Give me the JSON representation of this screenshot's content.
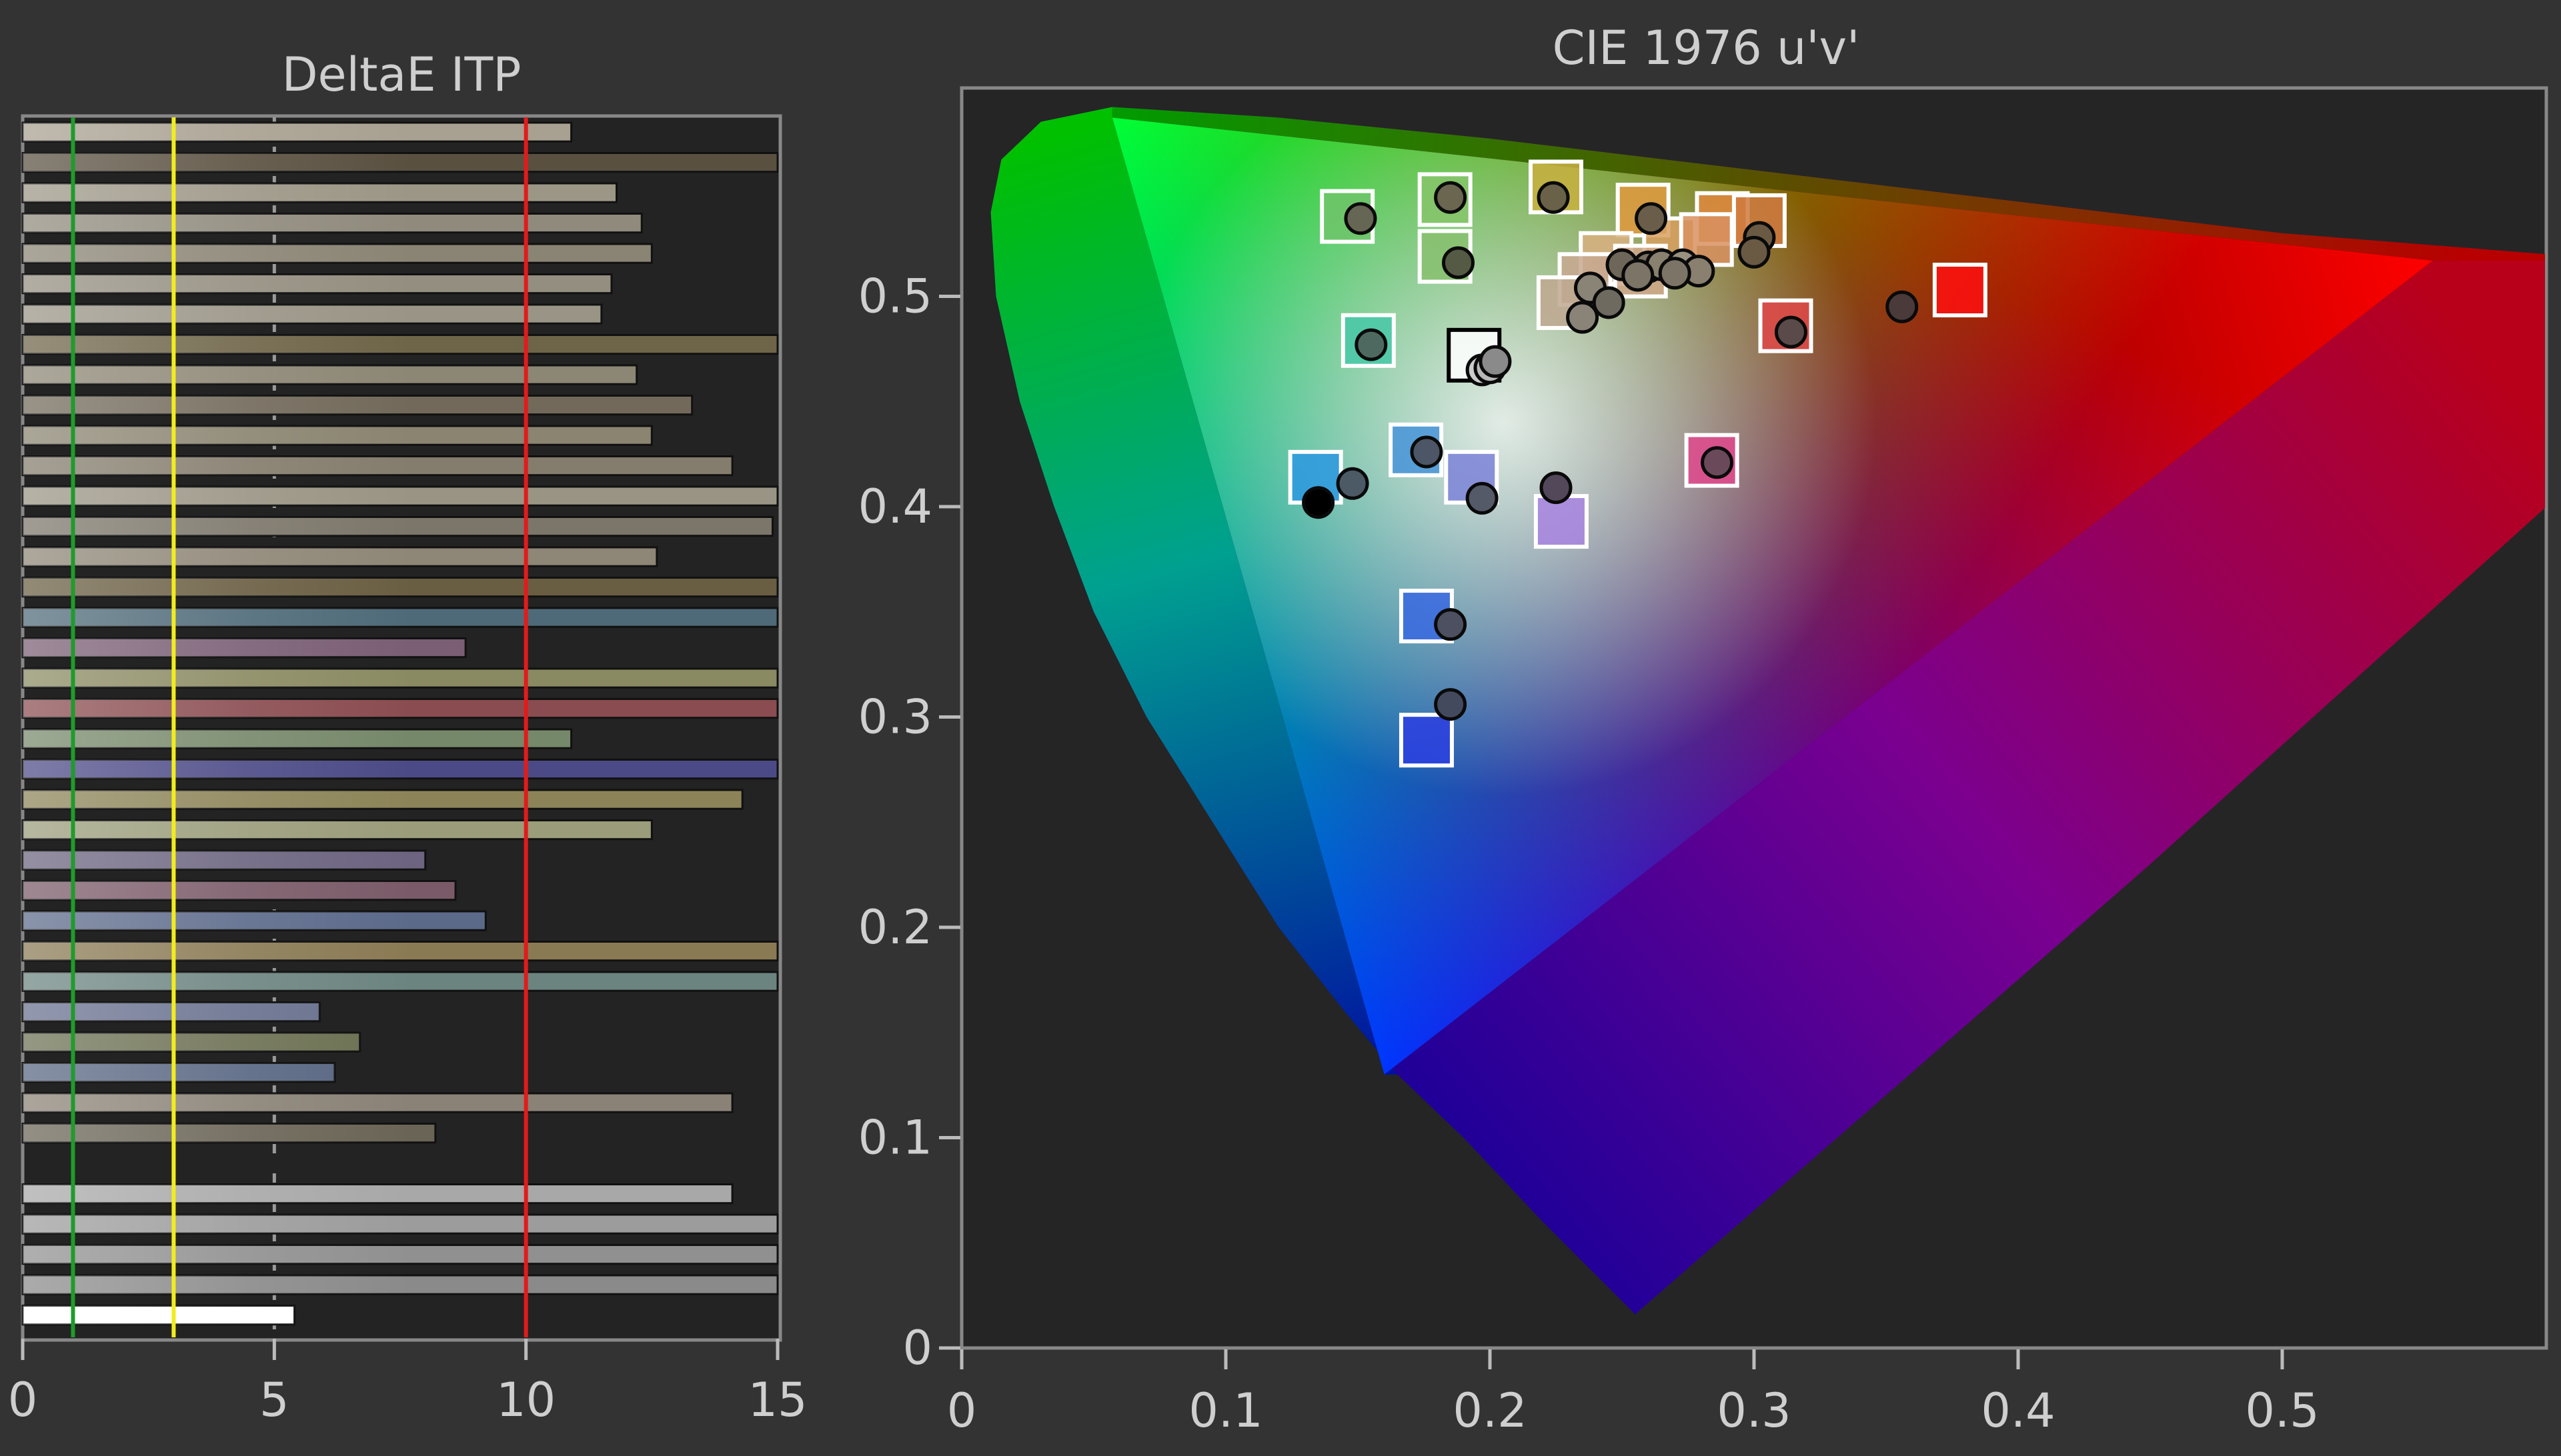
{
  "chart_data": [
    {
      "type": "bar",
      "orientation": "horizontal",
      "title": "DeltaE ITP",
      "xlim": [
        0,
        15
      ],
      "xticks": [
        0,
        5,
        10,
        15
      ],
      "grid": true,
      "reference_lines": [
        {
          "value": 1,
          "color": "#1e9c2a"
        },
        {
          "value": 3,
          "color": "#f2ec1e"
        },
        {
          "value": 10,
          "color": "#e21b1b"
        }
      ],
      "rows": [
        {
          "value": 10.9,
          "color": "#a8a090"
        },
        {
          "value": 15,
          "color": "#5a5040"
        },
        {
          "value": 11.8,
          "color": "#9c9686"
        },
        {
          "value": 12.3,
          "color": "#8f8a7c"
        },
        {
          "value": 12.5,
          "color": "#8a8474"
        },
        {
          "value": 11.7,
          "color": "#948e80"
        },
        {
          "value": 11.5,
          "color": "#9a9486"
        },
        {
          "value": 15,
          "color": "#6e6448"
        },
        {
          "value": 12.2,
          "color": "#8c8674"
        },
        {
          "value": 13.3,
          "color": "#72695a"
        },
        {
          "value": 12.5,
          "color": "#8a8470"
        },
        {
          "value": 14.1,
          "color": "#847c6c"
        },
        {
          "value": 15,
          "color": "#9a9484"
        },
        {
          "value": 14.9,
          "color": "#7c766a"
        },
        {
          "value": 12.6,
          "color": "#8e8676"
        },
        {
          "value": 15,
          "color": "#6a5e42"
        },
        {
          "value": 15,
          "color": "#4e6a78"
        },
        {
          "value": 8.8,
          "color": "#7a5e74"
        },
        {
          "value": 15,
          "color": "#8a8a62"
        },
        {
          "value": 15,
          "color": "#8a4c50"
        },
        {
          "value": 10.9,
          "color": "#76886a"
        },
        {
          "value": 15,
          "color": "#4c4a86"
        },
        {
          "value": 14.3,
          "color": "#8c8458"
        },
        {
          "value": 12.5,
          "color": "#9a9c7a"
        },
        {
          "value": 8,
          "color": "#6c6480"
        },
        {
          "value": 8.6,
          "color": "#7a5a68"
        },
        {
          "value": 9.2,
          "color": "#5c6a8a"
        },
        {
          "value": 15,
          "color": "#8a7a54"
        },
        {
          "value": 15,
          "color": "#6c8480"
        },
        {
          "value": 5.9,
          "color": "#68708e"
        },
        {
          "value": 6.7,
          "color": "#6c7052"
        },
        {
          "value": 6.2,
          "color": "#586682"
        },
        {
          "value": 14.1,
          "color": "#8a8276"
        },
        {
          "value": 8.2,
          "color": "#6a6456"
        },
        {
          "value": 0,
          "color": "#444444"
        },
        {
          "value": 14.1,
          "color": "#a8a8a8"
        },
        {
          "value": 15,
          "color": "#9c9c9c"
        },
        {
          "value": 15,
          "color": "#909090"
        },
        {
          "value": 15,
          "color": "#8a8a8a"
        },
        {
          "value": 5.4,
          "color": "#ffffff"
        }
      ]
    },
    {
      "type": "scatter",
      "title": "CIE 1976 u'v'",
      "xlim": [
        0,
        0.6
      ],
      "ylim": [
        0,
        0.6
      ],
      "xticks": [
        "0",
        "0.1",
        "0.2",
        "0.3",
        "0.4",
        "0.5"
      ],
      "yticks": [
        "0",
        "0.1",
        "0.2",
        "0.3",
        "0.4",
        "0.5"
      ],
      "gamut": {
        "red": [
          0.557,
          0.517
        ],
        "green": [
          0.057,
          0.585
        ],
        "blue": [
          0.16,
          0.13
        ]
      },
      "target_squares": [
        {
          "u": 0.146,
          "v": 0.538,
          "color": "#6fc46a"
        },
        {
          "u": 0.183,
          "v": 0.546,
          "color": "#86c46a"
        },
        {
          "u": 0.225,
          "v": 0.552,
          "color": "#c9b040"
        },
        {
          "u": 0.258,
          "v": 0.541,
          "color": "#e09a40"
        },
        {
          "u": 0.288,
          "v": 0.537,
          "color": "#e08a40"
        },
        {
          "u": 0.302,
          "v": 0.536,
          "color": "#d07a40"
        },
        {
          "u": 0.268,
          "v": 0.525,
          "color": "#d8a060"
        },
        {
          "u": 0.282,
          "v": 0.527,
          "color": "#d89060"
        },
        {
          "u": 0.244,
          "v": 0.518,
          "color": "#d8b080"
        },
        {
          "u": 0.257,
          "v": 0.512,
          "color": "#d0a888"
        },
        {
          "u": 0.236,
          "v": 0.508,
          "color": "#c8a890"
        },
        {
          "u": 0.228,
          "v": 0.497,
          "color": "#c0a890"
        },
        {
          "u": 0.183,
          "v": 0.519,
          "color": "#88c070"
        },
        {
          "u": 0.154,
          "v": 0.479,
          "color": "#48c8a8"
        },
        {
          "u": 0.194,
          "v": 0.472,
          "color": "#ffffff",
          "stroke": "#000000"
        },
        {
          "u": 0.312,
          "v": 0.486,
          "color": "#e04848"
        },
        {
          "u": 0.378,
          "v": 0.503,
          "color": "#ff1010"
        },
        {
          "u": 0.134,
          "v": 0.414,
          "color": "#2c98e0"
        },
        {
          "u": 0.172,
          "v": 0.427,
          "color": "#4894d8"
        },
        {
          "u": 0.193,
          "v": 0.414,
          "color": "#7c84d8"
        },
        {
          "u": 0.227,
          "v": 0.393,
          "color": "#a884e0"
        },
        {
          "u": 0.284,
          "v": 0.422,
          "color": "#e0488c"
        },
        {
          "u": 0.176,
          "v": 0.348,
          "color": "#3868e0"
        },
        {
          "u": 0.176,
          "v": 0.289,
          "color": "#2c40e0"
        }
      ],
      "measured_points": [
        {
          "u": 0.151,
          "v": 0.537,
          "color": "#666655"
        },
        {
          "u": 0.185,
          "v": 0.547,
          "color": "#6a6650"
        },
        {
          "u": 0.224,
          "v": 0.547,
          "color": "#6a6248"
        },
        {
          "u": 0.261,
          "v": 0.537,
          "color": "#6a5e4a"
        },
        {
          "u": 0.302,
          "v": 0.528,
          "color": "#6a5a44"
        },
        {
          "u": 0.3,
          "v": 0.521,
          "color": "#6a5a44"
        },
        {
          "u": 0.25,
          "v": 0.515,
          "color": "#6e6658"
        },
        {
          "u": 0.26,
          "v": 0.514,
          "color": "#7a7060"
        },
        {
          "u": 0.265,
          "v": 0.515,
          "color": "#8a8070"
        },
        {
          "u": 0.273,
          "v": 0.515,
          "color": "#9a9080"
        },
        {
          "u": 0.279,
          "v": 0.512,
          "color": "#8a8070"
        },
        {
          "u": 0.256,
          "v": 0.51,
          "color": "#7c7466"
        },
        {
          "u": 0.27,
          "v": 0.511,
          "color": "#7c7466"
        },
        {
          "u": 0.238,
          "v": 0.504,
          "color": "#8a8476"
        },
        {
          "u": 0.245,
          "v": 0.497,
          "color": "#6e6a60"
        },
        {
          "u": 0.235,
          "v": 0.49,
          "color": "#8a8478"
        },
        {
          "u": 0.188,
          "v": 0.516,
          "color": "#555a44"
        },
        {
          "u": 0.155,
          "v": 0.477,
          "color": "#4e6a60"
        },
        {
          "u": 0.197,
          "v": 0.465,
          "color": "#cccccc"
        },
        {
          "u": 0.2,
          "v": 0.466,
          "color": "#b8b8b8"
        },
        {
          "u": 0.202,
          "v": 0.469,
          "color": "#8a8a8a"
        },
        {
          "u": 0.314,
          "v": 0.483,
          "color": "#5a4a4a"
        },
        {
          "u": 0.356,
          "v": 0.495,
          "color": "#4a3a3a"
        },
        {
          "u": 0.148,
          "v": 0.411,
          "color": "#4c5a66"
        },
        {
          "u": 0.135,
          "v": 0.402,
          "color": "#000000"
        },
        {
          "u": 0.176,
          "v": 0.426,
          "color": "#4c5666"
        },
        {
          "u": 0.197,
          "v": 0.404,
          "color": "#555a68"
        },
        {
          "u": 0.225,
          "v": 0.409,
          "color": "#52485a"
        },
        {
          "u": 0.286,
          "v": 0.421,
          "color": "#6a4a5a"
        },
        {
          "u": 0.185,
          "v": 0.344,
          "color": "#4c5060"
        },
        {
          "u": 0.185,
          "v": 0.306,
          "color": "#444a5e"
        }
      ]
    }
  ]
}
